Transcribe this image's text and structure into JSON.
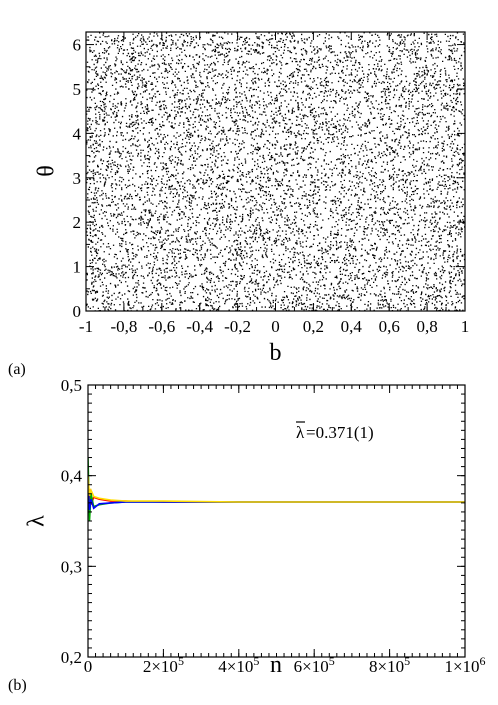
{
  "chart_data": [
    {
      "type": "scatter",
      "panel_label": "(a)",
      "xlabel": "b",
      "ylabel": "θ",
      "xlim": [
        -1,
        1
      ],
      "ylim": [
        0,
        6.2832
      ],
      "x_ticks": [
        -1,
        -0.8,
        -0.6,
        -0.4,
        -0.2,
        0,
        0.2,
        0.4,
        0.6,
        0.8,
        1
      ],
      "x_tick_labels": [
        "-1",
        "-0,8",
        "-0,6",
        "-0,4",
        "-0,2",
        "0",
        "0,2",
        "0,4",
        "0,6",
        "0,8",
        "1"
      ],
      "y_ticks": [
        0,
        1,
        2,
        3,
        4,
        5,
        6
      ],
      "y_tick_labels": [
        "0",
        "1",
        "2",
        "3",
        "4",
        "5",
        "6"
      ],
      "grid": false,
      "point_color": "#000000",
      "description": "dense uniform chaotic sea filling the whole phase space"
    },
    {
      "type": "line",
      "panel_label": "(b)",
      "xlabel": "n",
      "ylabel": "λ",
      "xlim": [
        0,
        1000000
      ],
      "ylim": [
        0.2,
        0.5
      ],
      "x_ticks": [
        0,
        200000,
        400000,
        600000,
        800000,
        1000000
      ],
      "x_tick_labels": [
        {
          "mant": "0",
          "exp": ""
        },
        {
          "mant": "2×10",
          "exp": "5"
        },
        {
          "mant": "4×10",
          "exp": "5"
        },
        {
          "mant": "6×10",
          "exp": "5"
        },
        {
          "mant": "8×10",
          "exp": "5"
        },
        {
          "mant": "1×10",
          "exp": "6"
        }
      ],
      "y_ticks": [
        0.2,
        0.3,
        0.4,
        0.5
      ],
      "y_tick_labels": [
        "0,2",
        "0,3",
        "0,4",
        "0,5"
      ],
      "annotation": "=0.371(1)",
      "annotation_symbol": "λ",
      "grid": false,
      "series": [
        {
          "color": "#ff0000",
          "x": [
            0,
            4000,
            8000,
            15000,
            30000,
            60000,
            100000,
            200000,
            400000,
            700000,
            1000000
          ],
          "y": [
            0.36,
            0.385,
            0.368,
            0.376,
            0.374,
            0.372,
            0.372,
            0.371,
            0.371,
            0.371,
            0.371
          ]
        },
        {
          "color": "#00aa00",
          "x": [
            0,
            4000,
            8000,
            15000,
            30000,
            60000,
            100000,
            200000,
            400000,
            700000,
            1000000
          ],
          "y": [
            0.42,
            0.35,
            0.38,
            0.366,
            0.368,
            0.37,
            0.371,
            0.371,
            0.371,
            0.371,
            0.371
          ]
        },
        {
          "color": "#0000ff",
          "x": [
            0,
            4000,
            8000,
            15000,
            30000,
            60000,
            100000,
            200000,
            400000,
            700000,
            1000000
          ],
          "y": [
            0.39,
            0.362,
            0.374,
            0.364,
            0.369,
            0.37,
            0.371,
            0.371,
            0.371,
            0.371,
            0.371
          ]
        },
        {
          "color": "#ffdd00",
          "x": [
            0,
            4000,
            8000,
            15000,
            30000,
            60000,
            100000,
            200000,
            400000,
            700000,
            1000000
          ],
          "y": [
            0.4,
            0.378,
            0.384,
            0.377,
            0.375,
            0.373,
            0.372,
            0.372,
            0.371,
            0.371,
            0.371
          ]
        }
      ]
    }
  ]
}
